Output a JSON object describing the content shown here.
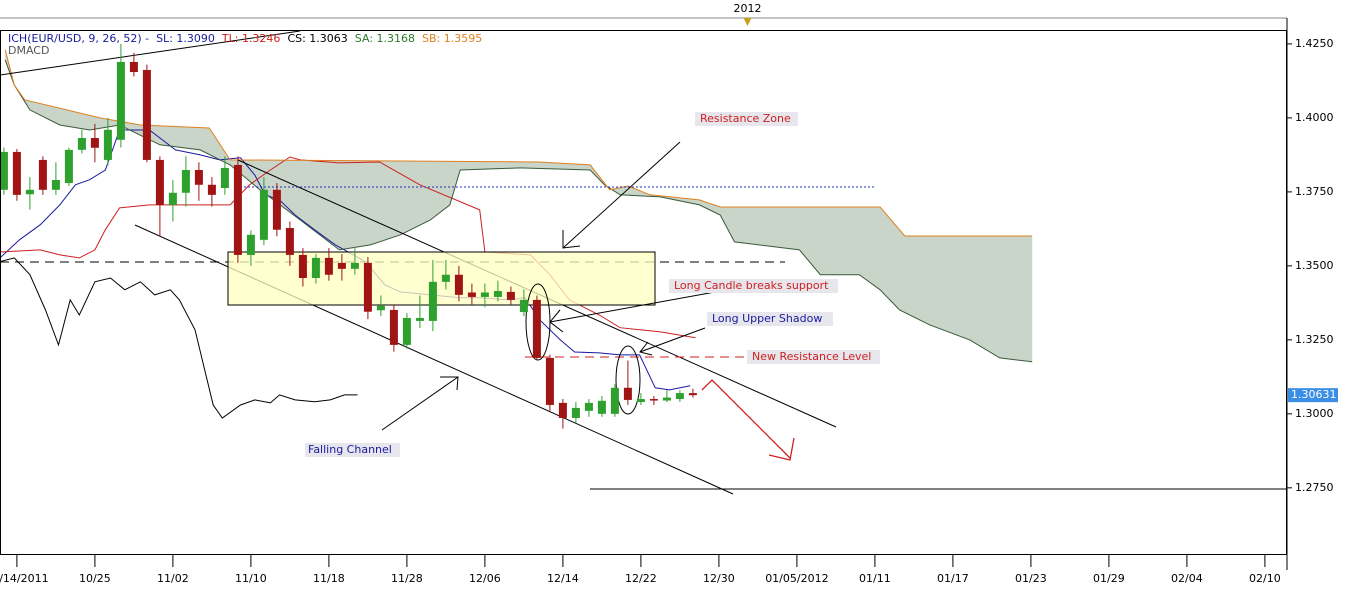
{
  "chart_data": {
    "type": "candlestick",
    "header": [
      {
        "text": "ICH(EUR/USD, 9, 26, 52) -",
        "color": "#1a1aa0"
      },
      {
        "text": "SL: 1.3090",
        "color": "#1a1aa0"
      },
      {
        "text": "TL: 1.3246",
        "color": "#cc2020"
      },
      {
        "text": "CS: 1.3063",
        "color": "#000000"
      },
      {
        "text": "SA: 1.3168",
        "color": "#2a7a2a"
      },
      {
        "text": "SB: 1.3595",
        "color": "#e08020"
      }
    ],
    "subtitle": "DMACD",
    "year_marker": {
      "value": 56.2,
      "label": "2012"
    },
    "annotations": [
      "Resistance Zone",
      "Long Candle breaks support",
      "Long Upper Shadow",
      "New Resistance Level",
      "Falling Channel"
    ],
    "last_price": 1.30631,
    "xlim": [
      -1.3,
      97.7
    ],
    "ylim": [
      1.2523,
      1.4297
    ],
    "xticks": [
      {
        "value": 0,
        "label": "10/14/2011"
      },
      {
        "value": 6,
        "label": "10/25"
      },
      {
        "value": 12,
        "label": "11/02"
      },
      {
        "value": 18,
        "label": "11/10"
      },
      {
        "value": 24,
        "label": "11/18"
      },
      {
        "value": 30,
        "label": "11/28"
      },
      {
        "value": 36,
        "label": "12/06"
      },
      {
        "value": 42,
        "label": "12/14"
      },
      {
        "value": 48,
        "label": "12/22"
      },
      {
        "value": 54,
        "label": "12/30"
      },
      {
        "value": 60,
        "label": "01/05/2012"
      },
      {
        "value": 66,
        "label": "01/11"
      },
      {
        "value": 72,
        "label": "01/17"
      },
      {
        "value": 78,
        "label": "01/23"
      },
      {
        "value": 84,
        "label": "01/29"
      },
      {
        "value": 90,
        "label": "02/04"
      },
      {
        "value": 96,
        "label": "02/10"
      }
    ],
    "yticks": [
      {
        "value": 1.425,
        "label": "1.4250"
      },
      {
        "value": 1.4,
        "label": "1.4000"
      },
      {
        "value": 1.375,
        "label": "1.3750"
      },
      {
        "value": 1.35,
        "label": "1.3500"
      },
      {
        "value": 1.325,
        "label": "1.3250"
      },
      {
        "value": 1.3,
        "label": "1.3000"
      },
      {
        "value": 1.275,
        "label": "1.2750"
      }
    ],
    "up_color": "#2ea02e",
    "down_color": "#a01414",
    "cloud_color": "#c3d0c3",
    "candles": {
      "x": [
        -1,
        0,
        1,
        2,
        3,
        4,
        5,
        6,
        7,
        8,
        9,
        10,
        11,
        12,
        13,
        14,
        15,
        16,
        17,
        18,
        19,
        20,
        21,
        22,
        23,
        24,
        25,
        26,
        27,
        28,
        29,
        30,
        31,
        32,
        33,
        34,
        35,
        36,
        37,
        38,
        39,
        40,
        41,
        42,
        43,
        44,
        45,
        46,
        47,
        48,
        49,
        50,
        51,
        52
      ],
      "open": [
        1.3757,
        1.3885,
        1.3742,
        1.3858,
        1.3757,
        1.378,
        1.3892,
        1.3932,
        1.3858,
        1.3926,
        1.4189,
        1.4162,
        1.3858,
        1.3706,
        1.3747,
        1.3824,
        1.3774,
        1.3763,
        1.3841,
        1.3537,
        1.3588,
        1.3757,
        1.3628,
        1.3537,
        1.3459,
        1.3527,
        1.351,
        1.349,
        1.351,
        1.335,
        1.3351,
        1.3233,
        1.3314,
        1.3314,
        1.3446,
        1.347,
        1.341,
        1.3395,
        1.3395,
        1.3412,
        1.3344,
        1.3385,
        1.3189,
        1.3037,
        1.2986,
        1.301,
        1.3,
        1.3,
        1.3088,
        1.304,
        1.305,
        1.3045,
        1.305,
        1.307
      ],
      "high": [
        1.39,
        1.3895,
        1.38,
        1.387,
        1.385,
        1.39,
        1.396,
        1.398,
        1.4,
        1.425,
        1.422,
        1.418,
        1.387,
        1.379,
        1.387,
        1.385,
        1.38,
        1.387,
        1.387,
        1.362,
        1.38,
        1.378,
        1.365,
        1.356,
        1.354,
        1.356,
        1.354,
        1.356,
        1.353,
        1.34,
        1.337,
        1.334,
        1.34,
        1.352,
        1.352,
        1.35,
        1.344,
        1.344,
        1.345,
        1.343,
        1.342,
        1.34,
        1.32,
        1.305,
        1.304,
        1.305,
        1.306,
        1.31,
        1.318,
        1.307,
        1.306,
        1.308,
        1.308,
        1.3085
      ],
      "low": [
        1.374,
        1.372,
        1.369,
        1.374,
        1.374,
        1.377,
        1.388,
        1.385,
        1.384,
        1.39,
        1.414,
        1.385,
        1.36,
        1.365,
        1.37,
        1.372,
        1.37,
        1.374,
        1.351,
        1.35,
        1.357,
        1.36,
        1.35,
        1.343,
        1.344,
        1.345,
        1.345,
        1.347,
        1.332,
        1.333,
        1.321,
        1.322,
        1.329,
        1.328,
        1.342,
        1.338,
        1.337,
        1.336,
        1.338,
        1.337,
        1.333,
        1.318,
        1.301,
        1.295,
        1.297,
        1.299,
        1.299,
        1.299,
        1.303,
        1.303,
        1.303,
        1.304,
        1.304,
        1.3055
      ],
      "close": [
        1.3885,
        1.374,
        1.3757,
        1.3757,
        1.379,
        1.3892,
        1.3932,
        1.3899,
        1.396,
        1.4189,
        1.4155,
        1.3858,
        1.3706,
        1.3747,
        1.3824,
        1.3774,
        1.374,
        1.3831,
        1.3537,
        1.3605,
        1.3757,
        1.3622,
        1.3537,
        1.3459,
        1.3527,
        1.347,
        1.349,
        1.351,
        1.3345,
        1.3365,
        1.3233,
        1.3324,
        1.3324,
        1.3446,
        1.347,
        1.3402,
        1.3395,
        1.341,
        1.3415,
        1.3385,
        1.3385,
        1.3189,
        1.303,
        1.2986,
        1.302,
        1.3037,
        1.3044,
        1.3088,
        1.3047,
        1.305,
        1.3045,
        1.3055,
        1.307,
        1.3063
      ]
    },
    "overlays": [
      {
        "color": "#000000",
        "x": [
          -1.3,
          -0.2,
          1.0,
          2.2,
          3.2,
          4.1,
          4.8,
          6.0,
          7.2,
          8.3,
          9.5,
          10.6,
          11.8,
          12.5,
          13.7,
          15.1,
          15.8,
          17.2,
          18.3,
          19.5,
          20.2,
          21.4,
          22.9,
          24.1,
          25.2,
          26.2
        ],
        "values": [
          1.3514,
          1.3527,
          1.347,
          1.3351,
          1.3233,
          1.3385,
          1.3334,
          1.3446,
          1.3459,
          1.3419,
          1.3446,
          1.3402,
          1.3419,
          1.3385,
          1.3284,
          1.303,
          1.2986,
          1.303,
          1.3047,
          1.3037,
          1.3064,
          1.3047,
          1.3041,
          1.3047,
          1.3064,
          1.3064
        ]
      },
      {
        "color": "#1a1aa0",
        "x": [
          -1.3,
          0.2,
          1.8,
          3.3,
          4.5,
          5.6,
          6.8,
          7.9,
          10.2,
          12.2,
          14.1,
          15.6,
          17.2,
          18.3,
          19.1,
          20.2,
          21.4,
          22.9,
          24.5,
          25.2,
          26.8,
          28.3,
          29.5,
          31.8,
          34.1,
          35.6,
          37.9,
          39.1,
          40.2,
          41.8,
          42.9,
          44.8,
          46.4,
          47.9,
          49.1,
          50.2,
          51.8
        ],
        "values": [
          1.3527,
          1.3588,
          1.3639,
          1.3706,
          1.3774,
          1.3791,
          1.3824,
          1.3959,
          1.3959,
          1.3892,
          1.3875,
          1.3858,
          1.3865,
          1.3807,
          1.374,
          1.3723,
          1.3672,
          1.3622,
          1.3571,
          1.3554,
          1.3514,
          1.3436,
          1.3412,
          1.3402,
          1.3392,
          1.3392,
          1.3385,
          1.3392,
          1.3318,
          1.325,
          1.3209,
          1.3206,
          1.3199,
          1.3199,
          1.3088,
          1.3081,
          1.3095
        ]
      },
      {
        "color": "#cc2020",
        "x": [
          -1.3,
          1.8,
          3.3,
          4.8,
          6.0,
          6.8,
          7.9,
          10.2,
          16.4,
          17.9,
          19.5,
          21.0,
          21.8,
          24.8,
          27.9,
          31.0,
          35.6,
          36.0,
          39.5,
          41.0,
          42.5,
          44.8,
          46.4,
          49.5,
          52.2
        ],
        "values": [
          1.3547,
          1.3554,
          1.3537,
          1.3527,
          1.3554,
          1.3622,
          1.3696,
          1.3706,
          1.3706,
          1.3774,
          1.3824,
          1.3868,
          1.3858,
          1.3848,
          1.3851,
          1.3774,
          1.3689,
          1.3547,
          1.3537,
          1.347,
          1.3385,
          1.3334,
          1.3291,
          1.3277,
          1.3257
        ]
      },
      {
        "color": "#3a5a3a",
        "x": [
          -0.9,
          -0.2,
          1.0,
          3.3,
          5.6,
          7.9,
          11.0,
          14.1,
          16.4,
          18.7,
          21.8,
          24.8,
          27.2,
          29.5,
          31.8,
          33.3,
          34.1,
          38.7,
          44.1,
          45.2,
          46.4,
          49.5,
          52.5,
          54.1,
          55.2,
          60.2,
          61.8,
          64.8,
          66.4,
          67.9,
          70.2,
          73.3,
          75.6,
          78.1
        ],
        "values": [
          1.4196,
          1.4111,
          1.4027,
          1.3976,
          1.3959,
          1.3976,
          1.3909,
          1.3892,
          1.3841,
          1.3757,
          1.3655,
          1.3554,
          1.3571,
          1.3605,
          1.3655,
          1.3706,
          1.3824,
          1.3831,
          1.3824,
          1.3774,
          1.374,
          1.3733,
          1.3706,
          1.3672,
          1.3581,
          1.3554,
          1.347,
          1.347,
          1.3419,
          1.3351,
          1.3301,
          1.325,
          1.3189,
          1.3176
        ]
      },
      {
        "color": "#e08020",
        "x": [
          -0.9,
          -0.2,
          0.6,
          6.4,
          9.5,
          14.8,
          16.4,
          40.2,
          44.1,
          45.6,
          47.0,
          48.7,
          52.5,
          54.1,
          66.4,
          68.3,
          78.1
        ],
        "values": [
          1.423,
          1.4111,
          1.4061,
          1.4,
          1.3976,
          1.3966,
          1.3858,
          1.3851,
          1.3841,
          1.3757,
          1.377,
          1.374,
          1.3723,
          1.3699,
          1.3699,
          1.3601,
          1.3601
        ]
      }
    ]
  }
}
